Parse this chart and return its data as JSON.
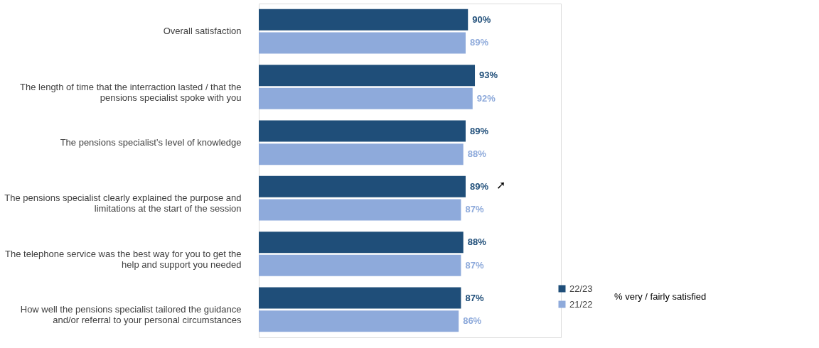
{
  "chart_data": {
    "type": "bar",
    "orientation": "horizontal",
    "categories": [
      "Overall satisfaction",
      "The length of time that the interraction lasted / that the pensions specialist spoke with you",
      "The pensions specialist’s level of knowledge",
      "The pensions specialist clearly explained the purpose and limitations at the start of the session",
      "The telephone service was the best way for you to get the help and support you needed",
      "How well the pensions specialist tailored the guidance and/or referral to your personal circumstances"
    ],
    "series": [
      {
        "name": "22/23",
        "color": "#1f4e79",
        "values": [
          90,
          93,
          89,
          89,
          88,
          87
        ],
        "value_labels": [
          "90%",
          "93%",
          "89%",
          "89%",
          "88%",
          "87%"
        ]
      },
      {
        "name": "21/22",
        "color": "#8eaadb",
        "values": [
          89,
          92,
          88,
          87,
          87,
          86
        ],
        "value_labels": [
          "89%",
          "92%",
          "88%",
          "87%",
          "87%",
          "86%"
        ]
      }
    ],
    "xlim": [
      0,
      130
    ],
    "tick_labels": "y",
    "grid": false,
    "legend": "bottom right",
    "legend_title": "% very / fairly satisfied",
    "annotations": [
      "➚"
    ]
  }
}
